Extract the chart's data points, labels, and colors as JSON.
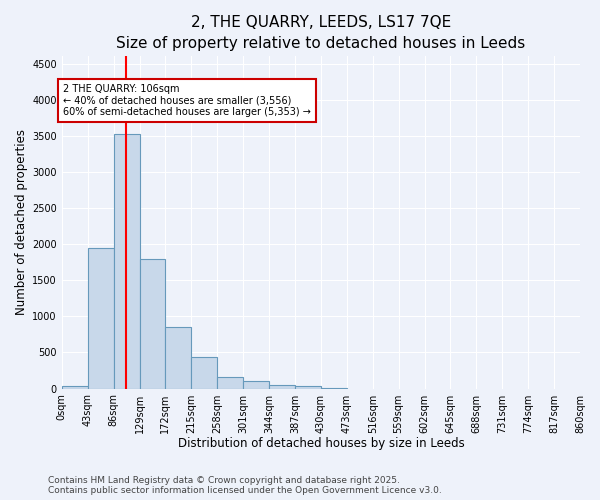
{
  "title": "2, THE QUARRY, LEEDS, LS17 7QE",
  "subtitle": "Size of property relative to detached houses in Leeds",
  "xlabel": "Distribution of detached houses by size in Leeds",
  "ylabel": "Number of detached properties",
  "footer_line1": "Contains HM Land Registry data © Crown copyright and database right 2025.",
  "footer_line2": "Contains public sector information licensed under the Open Government Licence v3.0.",
  "bin_edges": [
    0,
    43,
    86,
    129,
    172,
    215,
    258,
    301,
    344,
    387,
    430,
    473,
    516,
    559,
    602,
    645,
    688,
    731,
    774,
    817,
    860
  ],
  "bin_labels": [
    "0sqm",
    "43sqm",
    "86sqm",
    "129sqm",
    "172sqm",
    "215sqm",
    "258sqm",
    "301sqm",
    "344sqm",
    "387sqm",
    "430sqm",
    "473sqm",
    "516sqm",
    "559sqm",
    "602sqm",
    "645sqm",
    "688sqm",
    "731sqm",
    "774sqm",
    "817sqm",
    "860sqm"
  ],
  "bar_heights": [
    30,
    1950,
    3530,
    1800,
    850,
    440,
    160,
    100,
    55,
    40,
    15,
    0,
    0,
    0,
    0,
    0,
    0,
    0,
    0,
    0,
    0
  ],
  "bar_color": "#c8d8ea",
  "bar_edge_color": "#6699bb",
  "red_line_x": 106,
  "annotation_text_line1": "2 THE QUARRY: 106sqm",
  "annotation_text_line2": "← 40% of detached houses are smaller (3,556)",
  "annotation_text_line3": "60% of semi-detached houses are larger (5,353) →",
  "annotation_box_color": "#ffffff",
  "annotation_border_color": "#cc0000",
  "ylim": [
    0,
    4600
  ],
  "yticks": [
    0,
    500,
    1000,
    1500,
    2000,
    2500,
    3000,
    3500,
    4000,
    4500
  ],
  "background_color": "#eef2fa",
  "grid_color": "#ffffff",
  "title_fontsize": 11,
  "subtitle_fontsize": 9.5,
  "axis_label_fontsize": 8.5,
  "tick_fontsize": 7,
  "footer_fontsize": 6.5
}
